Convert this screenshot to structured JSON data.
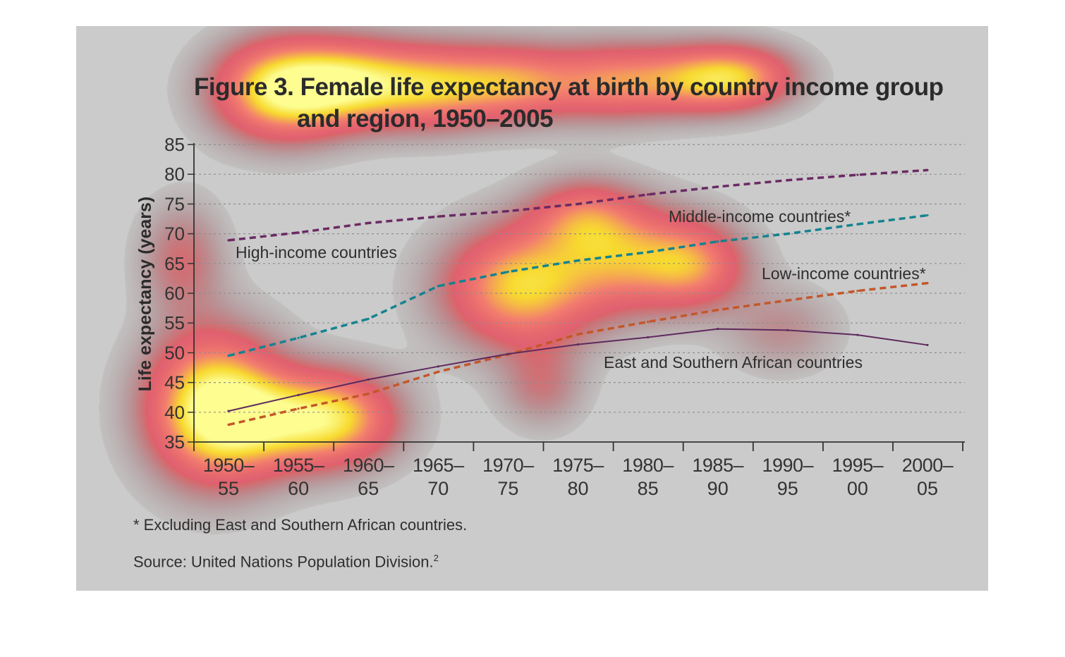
{
  "chart_data": {
    "type": "line",
    "title": "Figure 3. Female life expectancy at birth by country income group and region, 1950–2005",
    "title_lines": [
      "Figure 3. Female life expectancy at birth by country income group",
      "and region, 1950–2005"
    ],
    "ylabel": "Life expectancy (years)",
    "xlabel": "",
    "ylim": [
      35,
      85
    ],
    "yticks": [
      85,
      80,
      75,
      70,
      65,
      60,
      55,
      50,
      45,
      40,
      35
    ],
    "categories": [
      [
        "1950–",
        "55"
      ],
      [
        "1955–",
        "60"
      ],
      [
        "1960–",
        "65"
      ],
      [
        "1965–",
        "70"
      ],
      [
        "1970–",
        "75"
      ],
      [
        "1975–",
        "80"
      ],
      [
        "1980–",
        "85"
      ],
      [
        "1985–",
        "90"
      ],
      [
        "1990–",
        "95"
      ],
      [
        "1995–",
        "00"
      ],
      [
        "2000–",
        "05"
      ]
    ],
    "grid": "horizontal-dotted",
    "series": [
      {
        "name": "High-income countries",
        "style": "dashed",
        "color": "#6b2a63",
        "values": [
          68.9,
          70.2,
          71.8,
          72.9,
          73.8,
          75.0,
          76.6,
          77.9,
          79.0,
          79.9,
          80.7
        ]
      },
      {
        "name": "Middle-income countries*",
        "style": "dashed",
        "color": "#15838f",
        "values": [
          49.5,
          52.5,
          55.7,
          61.2,
          63.6,
          65.5,
          66.9,
          68.7,
          70.0,
          71.6,
          73.1
        ]
      },
      {
        "name": "Low-income countries*",
        "style": "dashed",
        "color": "#c4572a",
        "values": [
          37.9,
          40.6,
          43.1,
          46.8,
          49.7,
          53.1,
          55.2,
          57.2,
          58.8,
          60.4,
          61.7
        ]
      },
      {
        "name": "East and Southern African countries",
        "style": "solid",
        "color": "#5e2a5e",
        "values": [
          40.2,
          42.9,
          45.5,
          47.7,
          49.8,
          51.4,
          52.6,
          54.0,
          53.8,
          53.0,
          51.3
        ]
      }
    ]
  },
  "footnote": "* Excluding East and Southern African countries.",
  "source": "Source: United Nations Population Division.",
  "source_ref": "2"
}
